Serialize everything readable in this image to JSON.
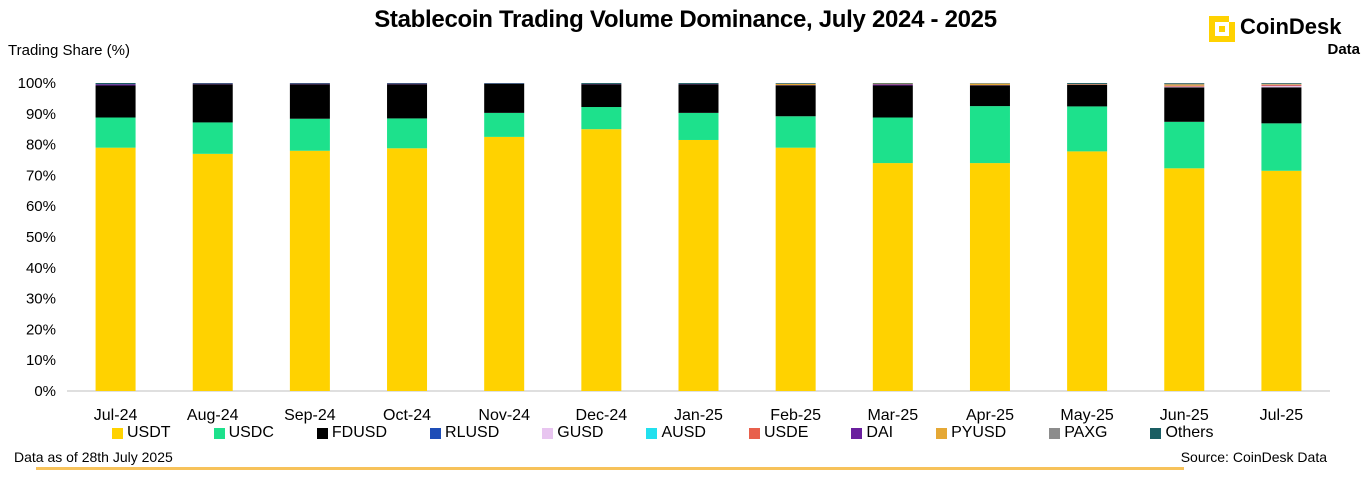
{
  "header": {
    "title": "Stablecoin Trading Volume Dominance, July 2024 - 2025",
    "logo_name": "CoinDesk",
    "logo_sub": "Data"
  },
  "footer": {
    "data_note": "Data as of 28th July 2025",
    "source": "Source: CoinDesk Data"
  },
  "colors": {
    "USDT": "#FFD200",
    "USDC": "#1DE18C",
    "FDUSD": "#000000",
    "RLUSD": "#1E4DB7",
    "GUSD": "#E8C5F0",
    "AUSD": "#22E0EE",
    "USDE": "#E8604C",
    "DAI": "#6A1F9E",
    "PYUSD": "#E5A835",
    "PAXG": "#8C8C8C",
    "Others": "#1A5E63",
    "axis": "#BFBFBF",
    "logo": "#FFD200",
    "footer_line": "#F7C25A"
  },
  "chart_data": {
    "type": "bar",
    "stacked": true,
    "title": "Stablecoin Trading Volume Dominance, July 2024 - 2025",
    "ylabel": "Trading Share (%)",
    "xlabel": "",
    "ylim": [
      0,
      100
    ],
    "yticks": [
      "0%",
      "10%",
      "20%",
      "30%",
      "40%",
      "50%",
      "60%",
      "70%",
      "80%",
      "90%",
      "100%"
    ],
    "categories": [
      "Jul-24",
      "Aug-24",
      "Sep-24",
      "Oct-24",
      "Nov-24",
      "Dec-24",
      "Jan-25",
      "Feb-25",
      "Mar-25",
      "Apr-25",
      "May-25",
      "Jun-25",
      "Jul-25"
    ],
    "series": [
      {
        "name": "USDT",
        "values": [
          79.0,
          77.0,
          78.0,
          78.8,
          82.5,
          85.0,
          81.5,
          79.0,
          74.0,
          74.0,
          77.8,
          72.3,
          71.5
        ]
      },
      {
        "name": "USDC",
        "values": [
          9.8,
          10.2,
          10.4,
          9.7,
          7.8,
          7.2,
          8.8,
          10.2,
          14.8,
          18.5,
          14.6,
          15.1,
          15.4
        ]
      },
      {
        "name": "FDUSD",
        "values": [
          10.4,
          12.4,
          11.2,
          11.1,
          9.4,
          7.4,
          9.3,
          10.0,
          10.4,
          6.7,
          7.0,
          11.2,
          11.7
        ]
      },
      {
        "name": "RLUSD",
        "values": [
          0.0,
          0.0,
          0.0,
          0.0,
          0.0,
          0.0,
          0.0,
          0.0,
          0.0,
          0.0,
          0.0,
          0.0,
          0.0
        ]
      },
      {
        "name": "GUSD",
        "values": [
          0.0,
          0.0,
          0.0,
          0.0,
          0.0,
          0.0,
          0.0,
          0.0,
          0.0,
          0.0,
          0.0,
          0.2,
          0.4
        ]
      },
      {
        "name": "AUSD",
        "values": [
          0.0,
          0.0,
          0.0,
          0.0,
          0.0,
          0.0,
          0.0,
          0.0,
          0.0,
          0.0,
          0.0,
          0.0,
          0.0
        ]
      },
      {
        "name": "USDE",
        "values": [
          0.0,
          0.0,
          0.0,
          0.0,
          0.0,
          0.0,
          0.0,
          0.0,
          0.0,
          0.0,
          0.0,
          0.2,
          0.3
        ]
      },
      {
        "name": "DAI",
        "values": [
          0.4,
          0.2,
          0.2,
          0.2,
          0.1,
          0.1,
          0.1,
          0.1,
          0.4,
          0.1,
          0.1,
          0.1,
          0.1
        ]
      },
      {
        "name": "PYUSD",
        "values": [
          0.0,
          0.0,
          0.0,
          0.0,
          0.0,
          0.0,
          0.0,
          0.4,
          0.2,
          0.5,
          0.2,
          0.4,
          0.2
        ]
      },
      {
        "name": "PAXG",
        "values": [
          0.0,
          0.0,
          0.0,
          0.0,
          0.0,
          0.0,
          0.0,
          0.1,
          0.0,
          0.1,
          0.0,
          0.3,
          0.2
        ]
      },
      {
        "name": "Others",
        "values": [
          0.4,
          0.2,
          0.2,
          0.2,
          0.2,
          0.3,
          0.3,
          0.2,
          0.2,
          0.1,
          0.3,
          0.2,
          0.2
        ]
      }
    ],
    "legend_position": "bottom"
  }
}
